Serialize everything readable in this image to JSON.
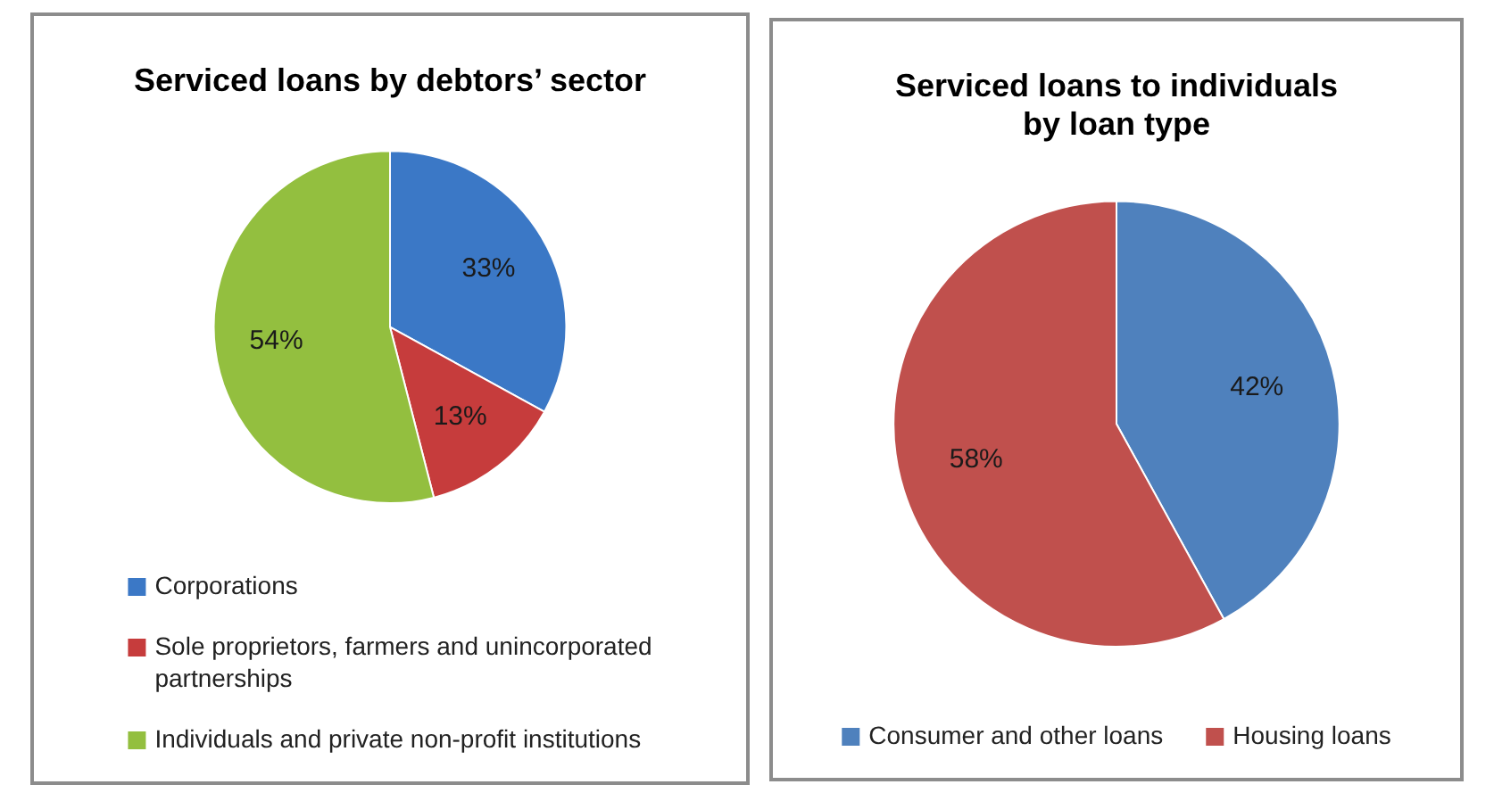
{
  "chart_data": [
    {
      "type": "pie",
      "title": "Serviced loans by debtors’ sector",
      "categories": [
        "Corporations",
        "Sole proprietors, farmers and unincorporated partnerships",
        "Individuals and private non-profit institutions"
      ],
      "values": [
        33,
        13,
        54
      ],
      "colors": [
        "#3b78c6",
        "#c63c3c",
        "#93bf3f"
      ],
      "value_labels": [
        "33%",
        "13%",
        "54%"
      ],
      "legend": "bottom"
    },
    {
      "type": "pie",
      "title": "Serviced loans to individuals by loan type",
      "categories": [
        "Consumer and other loans",
        "Housing loans"
      ],
      "values": [
        42,
        58
      ],
      "colors": [
        "#4f81bd",
        "#c0504d"
      ],
      "value_labels": [
        "42%",
        "58%"
      ],
      "legend": "bottom"
    }
  ]
}
